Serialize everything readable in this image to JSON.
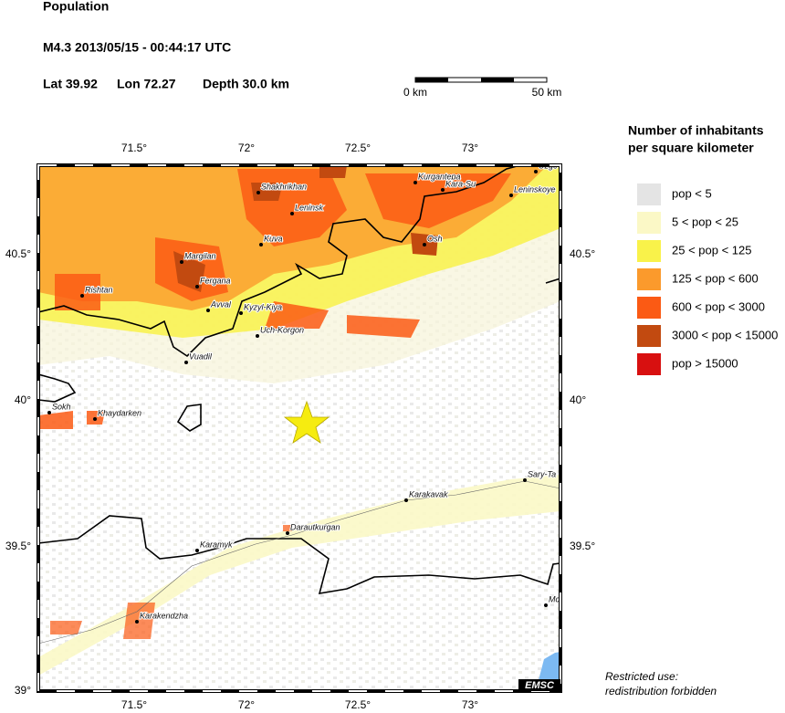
{
  "header": {
    "title": "Population",
    "event": "M4.3  2013/05/15 - 00:44:17 UTC",
    "lat": "Lat 39.92",
    "lon": "Lon 72.27",
    "depth": "Depth  30.0 km"
  },
  "scale_bar": {
    "start": "0 km",
    "end": "50 km"
  },
  "legend": {
    "title_line1": "Number of inhabitants",
    "title_line2": "per square kilometer",
    "items": [
      {
        "label": "pop < 5",
        "color": "#e4e4e4"
      },
      {
        "label": "5 < pop < 25",
        "color": "#fbf8c6"
      },
      {
        "label": "25 < pop < 125",
        "color": "#f9f24a"
      },
      {
        "label": "125 < pop < 600",
        "color": "#fb9a2c"
      },
      {
        "label": "600 < pop < 3000",
        "color": "#fb5a14"
      },
      {
        "label": "3000 < pop < 15000",
        "color": "#c24a10"
      },
      {
        "label": "pop > 15000",
        "color": "#d81010"
      }
    ]
  },
  "axes": {
    "x_top": [
      "71.5°",
      "72°",
      "72.5°",
      "73°"
    ],
    "x_bottom": [
      "71.5°",
      "72°",
      "72.5°",
      "73°"
    ],
    "y_left": [
      "40.5°",
      "40°",
      "39.5°",
      "39°"
    ],
    "y_right": [
      "40.5°",
      "40°",
      "39.5°"
    ]
  },
  "cities": [
    "Shakhrikhan",
    "Leninsk",
    "Kurgantepa",
    "Kara-Su",
    "Uzge",
    "Leninskoye",
    "Kuva",
    "Osh",
    "Margilan",
    "Fergana",
    "Rishtan",
    "Avval",
    "Kyzyl-Kiya",
    "Uch-Korgon",
    "Vuadil",
    "Sokh",
    "Khaydarken",
    "Sary-Ta",
    "Karakavak",
    "Darautkurgan",
    "Karamyk",
    "Mc",
    "Karakendzha"
  ],
  "credit": "EMSC",
  "notice_line1": "Restricted use:",
  "notice_line2": "redistribution forbidden"
}
